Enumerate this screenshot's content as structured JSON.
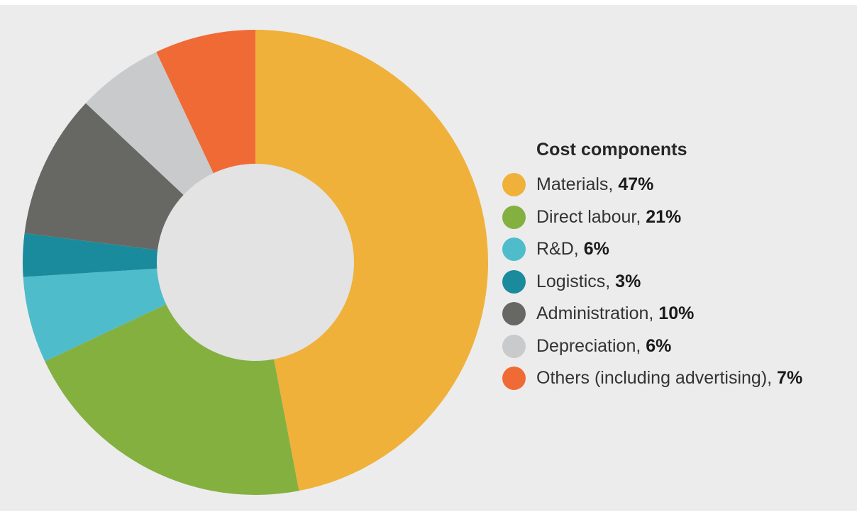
{
  "chart_data": {
    "type": "pie",
    "variant": "donut",
    "title": "",
    "legend_title": "Cost components",
    "legend_position": "right",
    "slices": [
      {
        "label": "Materials",
        "value": 47,
        "value_label": "47%",
        "color": "#efb13a"
      },
      {
        "label": "Direct labour",
        "value": 21,
        "value_label": "21%",
        "color": "#84b040"
      },
      {
        "label": "R&D",
        "value": 6,
        "value_label": "6%",
        "color": "#4ebccb"
      },
      {
        "label": "Logistics",
        "value": 3,
        "value_label": "3%",
        "color": "#1a8b9c"
      },
      {
        "label": "Administration",
        "value": 10,
        "value_label": "10%",
        "color": "#676864"
      },
      {
        "label": "Depreciation",
        "value": 6,
        "value_label": "6%",
        "color": "#c9cacb"
      },
      {
        "label": "Others (including advertising)",
        "value": 7,
        "value_label": "7%",
        "color": "#f06a36"
      }
    ]
  },
  "colors": {
    "background": "#ececec",
    "donut_hole": "#e3e3e3"
  }
}
